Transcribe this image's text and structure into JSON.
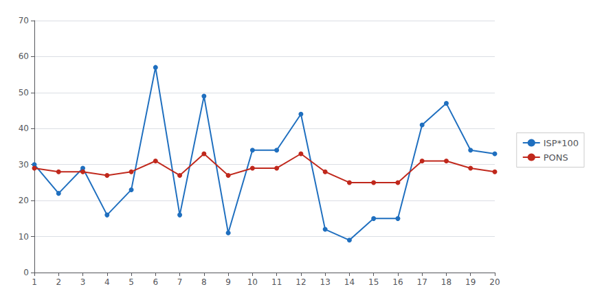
{
  "chart_data": {
    "type": "line",
    "x": [
      1,
      2,
      3,
      4,
      5,
      6,
      7,
      8,
      9,
      10,
      11,
      12,
      13,
      14,
      15,
      16,
      17,
      18,
      19,
      20
    ],
    "series": [
      {
        "name": "ISP*100",
        "color": "#1F6FBF",
        "marker": "circle",
        "values": [
          30,
          22,
          29,
          16,
          23,
          57,
          16,
          49,
          11,
          34,
          34,
          44,
          12,
          9,
          15,
          15,
          41,
          47,
          34,
          33
        ]
      },
      {
        "name": "PONS",
        "color": "#C0281C",
        "marker": "circle",
        "values": [
          29,
          28,
          28,
          27,
          28,
          31,
          27,
          33,
          27,
          29,
          29,
          33,
          28,
          25,
          25,
          25,
          31,
          31,
          29,
          28
        ]
      }
    ],
    "xlim": [
      1,
      20
    ],
    "xticks": [
      1,
      2,
      3,
      4,
      5,
      6,
      7,
      8,
      9,
      10,
      11,
      12,
      13,
      14,
      15,
      16,
      17,
      18,
      19,
      20
    ],
    "ylim": [
      0,
      70
    ],
    "yticks": [
      0,
      10,
      20,
      30,
      40,
      50,
      60,
      70
    ],
    "grid": true,
    "legend": "right"
  }
}
